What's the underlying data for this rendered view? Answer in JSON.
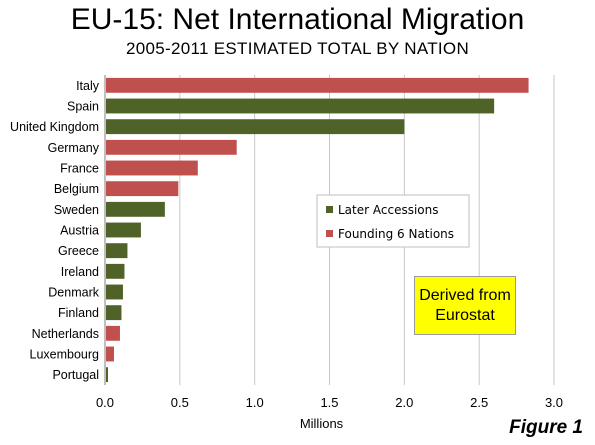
{
  "title": "EU-15: Net International Migration",
  "subtitle": "2005-2011 ESTIMATED TOTAL BY NATION",
  "figure_label": "Figure 1",
  "note": {
    "line1": "Derived from",
    "line2": "Eurostat"
  },
  "colors": {
    "later_accessions": "#4f6228",
    "founding_6": "#c0504d",
    "grid": "#c8c8c8"
  },
  "chart_data": {
    "type": "bar",
    "orientation": "horizontal",
    "title": "EU-15: Net International Migration",
    "subtitle": "2005-2011 ESTIMATED TOTAL BY NATION",
    "xlabel": "Millions",
    "ylabel": "",
    "xlim": [
      0,
      3.0
    ],
    "x_ticks": [
      "0.0",
      "0.5",
      "1.0",
      "1.5",
      "2.0",
      "2.5",
      "3.0"
    ],
    "grid": "vertical",
    "legend_position": "center-right",
    "legend": [
      {
        "name": "Later Accessions",
        "group": "later"
      },
      {
        "name": "Founding 6 Nations",
        "group": "founding"
      }
    ],
    "categories": [
      "Italy",
      "Spain",
      "United Kingdom",
      "Germany",
      "France",
      "Belgium",
      "Sweden",
      "Austria",
      "Greece",
      "Ireland",
      "Denmark",
      "Finland",
      "Netherlands",
      "Luxembourg",
      "Portugal"
    ],
    "values": [
      2.83,
      2.6,
      2.0,
      0.88,
      0.62,
      0.49,
      0.4,
      0.24,
      0.15,
      0.13,
      0.12,
      0.11,
      0.1,
      0.06,
      0.02
    ],
    "groups": [
      "founding",
      "later",
      "later",
      "founding",
      "founding",
      "founding",
      "later",
      "later",
      "later",
      "later",
      "later",
      "later",
      "founding",
      "founding",
      "later"
    ]
  }
}
